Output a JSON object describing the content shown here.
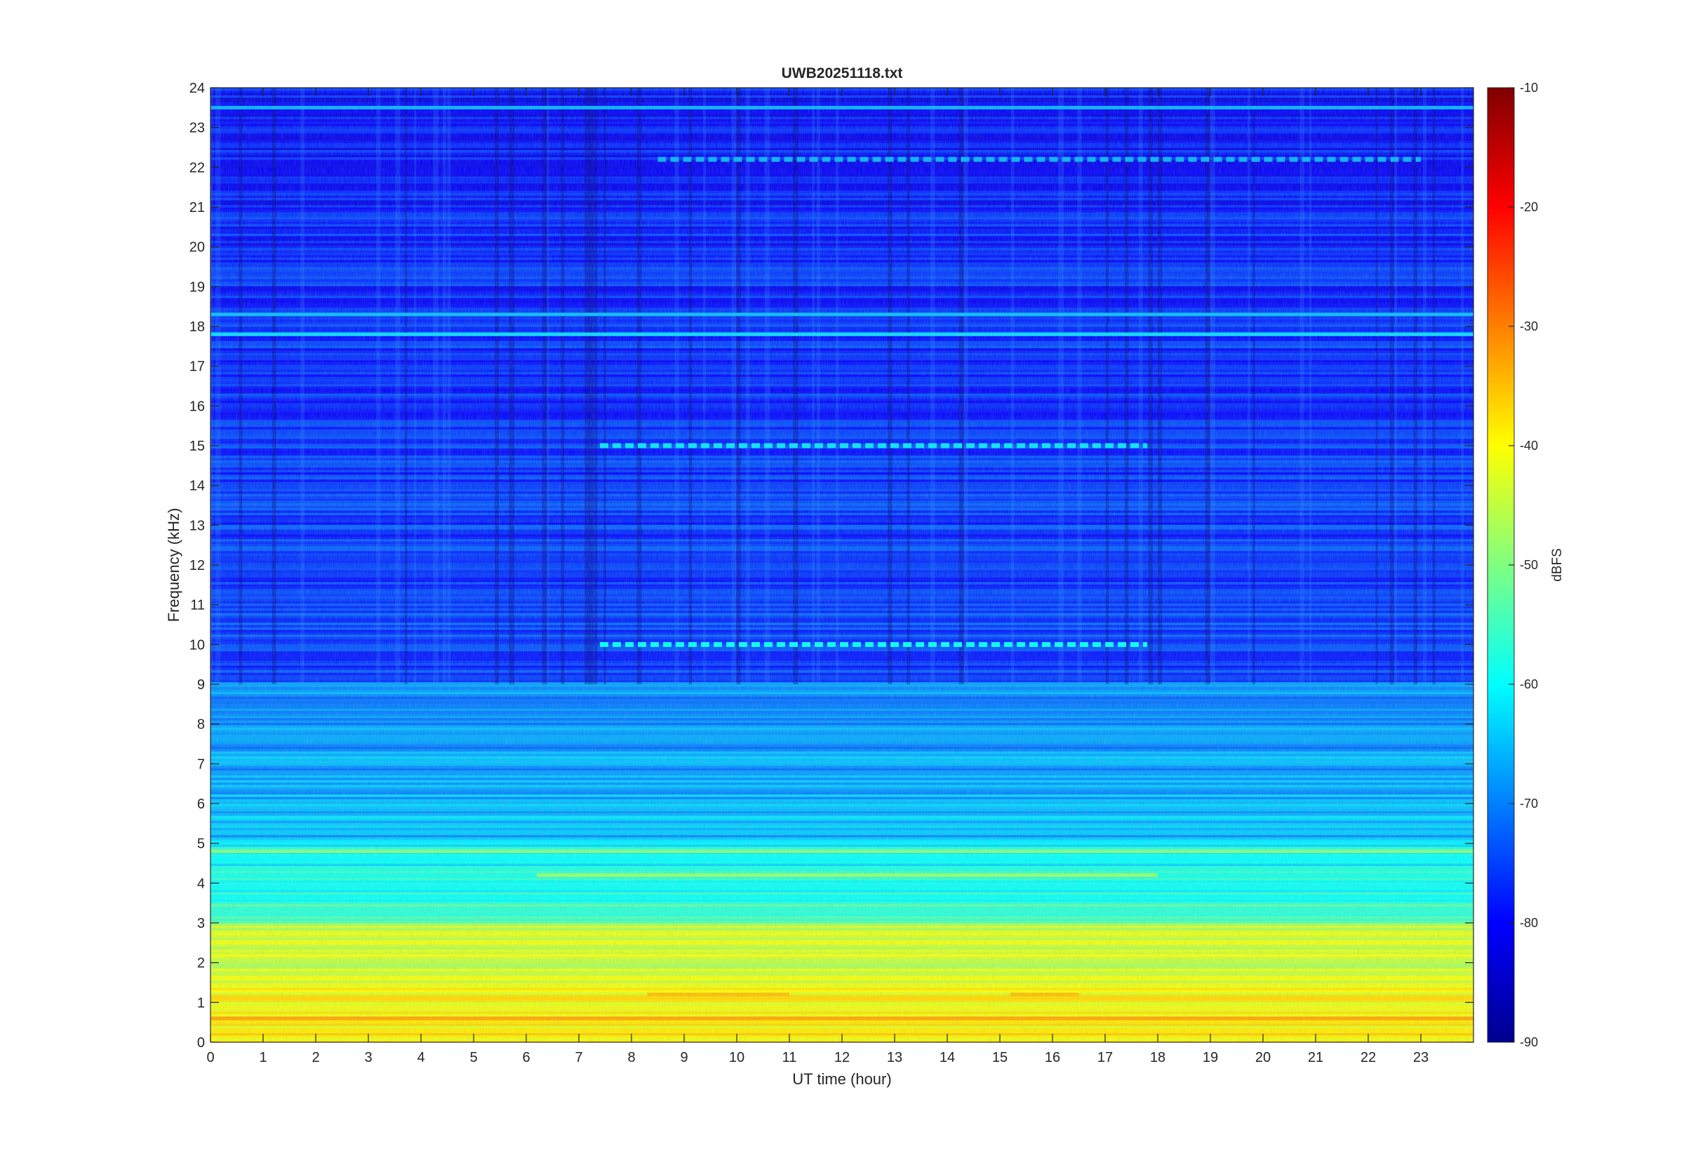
{
  "chart_data": {
    "type": "heatmap",
    "title": "UWB20251118.txt",
    "xlabel": "UT time (hour)",
    "ylabel": "Frequency (kHz)",
    "xlim": [
      0,
      24
    ],
    "ylim": [
      0,
      24
    ],
    "x_ticks": [
      "0",
      "1",
      "2",
      "3",
      "4",
      "5",
      "6",
      "7",
      "8",
      "9",
      "10",
      "11",
      "12",
      "13",
      "14",
      "15",
      "16",
      "17",
      "18",
      "19",
      "20",
      "21",
      "22",
      "23"
    ],
    "y_ticks": [
      "0",
      "1",
      "2",
      "3",
      "4",
      "5",
      "6",
      "7",
      "8",
      "9",
      "10",
      "11",
      "12",
      "13",
      "14",
      "15",
      "16",
      "17",
      "18",
      "19",
      "20",
      "21",
      "22",
      "23",
      "24"
    ],
    "colorbar": {
      "label": "dBFS",
      "range": [
        -90,
        -10
      ],
      "ticks": [
        "-10",
        "-20",
        "-30",
        "-40",
        "-50",
        "-60",
        "-70",
        "-80",
        "-90"
      ],
      "colormap": "jet"
    },
    "description_levels": {
      "background_high_freq_dBFS": -75,
      "band_0_3kHz_dBFS": -42,
      "band_3_5kHz_dBFS": -55,
      "band_5_9kHz_dBFS": -65
    },
    "features": [
      {
        "freq_khz": 0.6,
        "t_start": 0,
        "t_end": 24,
        "level_dBFS": -33
      },
      {
        "freq_khz": 1.2,
        "t_start": 8.3,
        "t_end": 11.0,
        "level_dBFS": -35
      },
      {
        "freq_khz": 1.2,
        "t_start": 15.2,
        "t_end": 16.5,
        "level_dBFS": -35
      },
      {
        "freq_khz": 4.2,
        "t_start": 6.2,
        "t_end": 18.0,
        "level_dBFS": -48
      },
      {
        "freq_khz": 4.8,
        "t_start": 0,
        "t_end": 24,
        "level_dBFS": -50
      },
      {
        "freq_khz": 10.0,
        "t_start": 7.4,
        "t_end": 17.8,
        "level_dBFS": -60
      },
      {
        "freq_khz": 15.0,
        "t_start": 7.4,
        "t_end": 17.8,
        "level_dBFS": -62
      },
      {
        "freq_khz": 18.3,
        "t_start": 0,
        "t_end": 24,
        "level_dBFS": -65
      },
      {
        "freq_khz": 17.8,
        "t_start": 0,
        "t_end": 24,
        "level_dBFS": -63
      },
      {
        "freq_khz": 22.2,
        "t_start": 8.5,
        "t_end": 23.0,
        "level_dBFS": -66
      },
      {
        "freq_khz": 23.5,
        "t_start": 0,
        "t_end": 24,
        "level_dBFS": -66
      }
    ]
  }
}
